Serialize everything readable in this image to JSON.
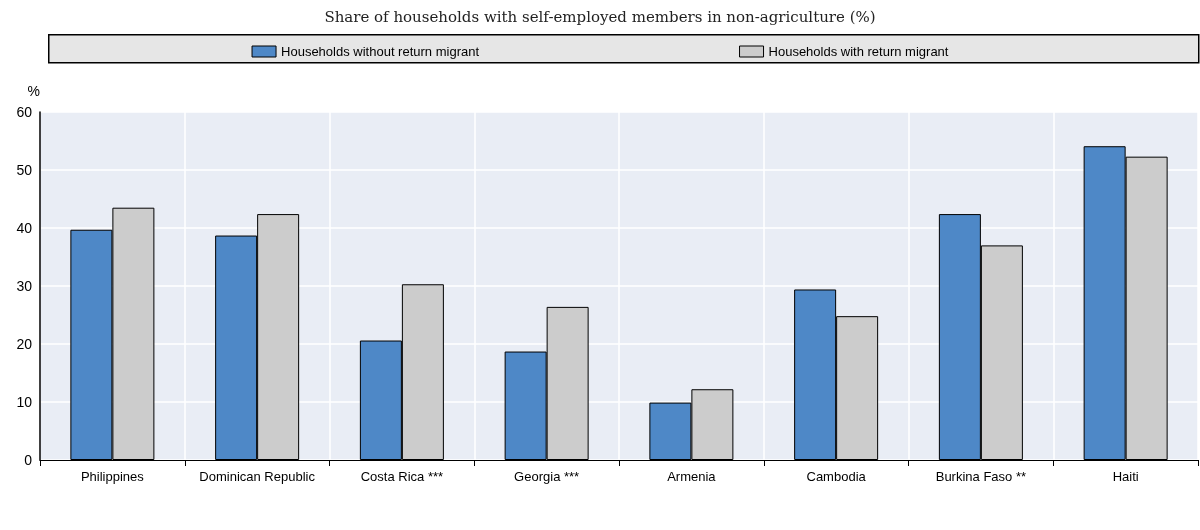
{
  "chart_data": {
    "type": "bar",
    "title": "Share of households with self-employed members in non-agriculture (%)",
    "ylabel": "%",
    "categories": [
      "Philippines",
      "Dominican Republic",
      "Costa Rica ***",
      "Georgia ***",
      "Armenia",
      "Cambodia",
      "Burkina Faso **",
      "Haiti"
    ],
    "series": [
      {
        "name": "Households without return migrant",
        "color": "#4e88c7",
        "values": [
          39.7,
          38.7,
          20.6,
          18.7,
          9.9,
          29.4,
          42.4,
          54.1
        ]
      },
      {
        "name": "Households with return migrant",
        "color": "#cccccc",
        "values": [
          43.5,
          42.4,
          30.3,
          26.4,
          12.2,
          24.8,
          37.0,
          52.3
        ]
      }
    ],
    "ylim": [
      0,
      60
    ],
    "yticks": [
      0,
      10,
      20,
      30,
      40,
      50,
      60
    ],
    "grid": true,
    "legend": "top"
  }
}
